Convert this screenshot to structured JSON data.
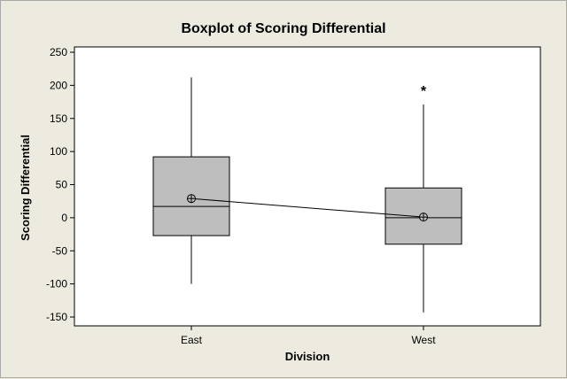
{
  "chart_data": {
    "type": "boxplot",
    "title": "Boxplot of Scoring Differential",
    "xlabel": "Division",
    "ylabel": "Scoring Differential",
    "categories": [
      "East",
      "West"
    ],
    "ylim": [
      -160,
      255
    ],
    "yticks": [
      "250",
      "200",
      "150",
      "100",
      "50",
      "0",
      "-50",
      "-100",
      "-150"
    ],
    "ytick_values": [
      250,
      200,
      150,
      100,
      50,
      0,
      -50,
      -100,
      -150
    ],
    "boxes": [
      {
        "category": "East",
        "whisker_low": -100,
        "q1": -27,
        "median": 17,
        "q3": 92,
        "whisker_high": 212,
        "mean": 29,
        "outliers": []
      },
      {
        "category": "West",
        "whisker_low": -143,
        "q1": -40,
        "median": 0,
        "q3": 45,
        "whisker_high": 171,
        "mean": 1,
        "outliers": [
          195
        ]
      }
    ],
    "mean_connect_line": true,
    "outlier_symbol": "*",
    "grid": false,
    "colors": {
      "box_fill": "#BEBEBE",
      "plot_bg": "#FFFFFF",
      "frame_bg": "#EDEBE0",
      "line": "#000000"
    }
  }
}
